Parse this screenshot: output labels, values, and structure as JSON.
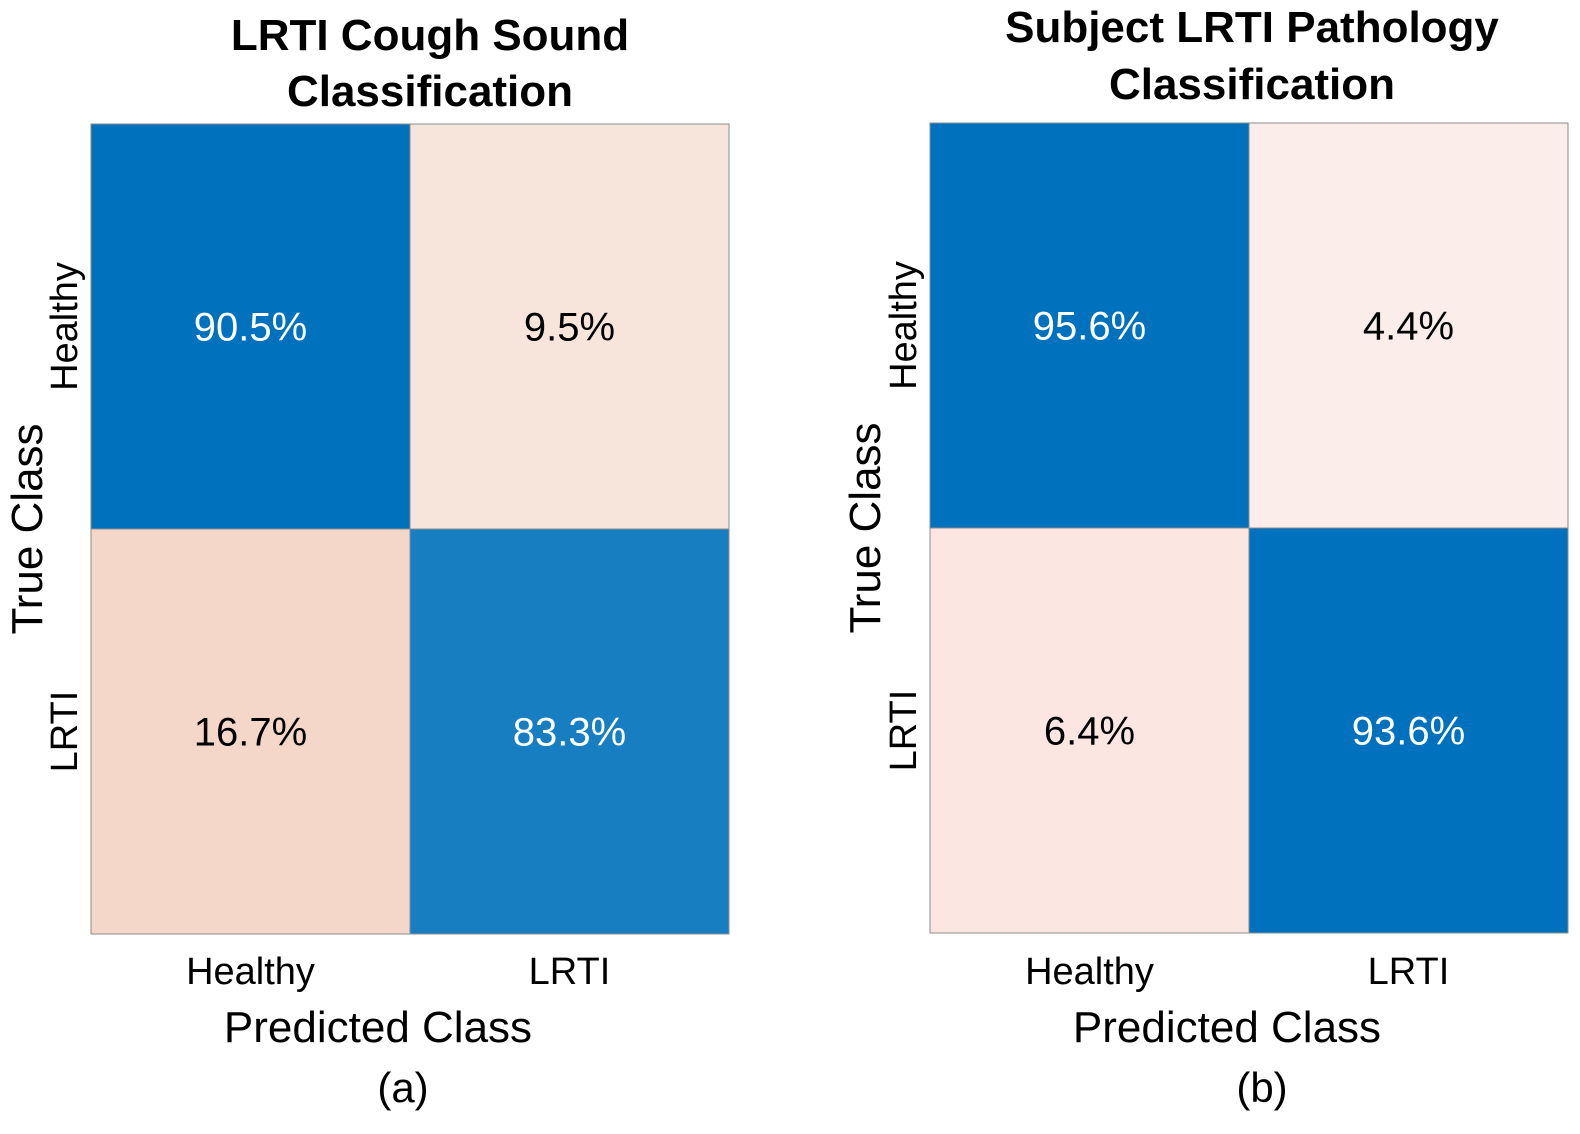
{
  "chart_data": [
    {
      "type": "heatmap",
      "title_lines": [
        "LRTI Cough Sound",
        "Classification"
      ],
      "xlabel": "Predicted Class",
      "ylabel": "True Class",
      "x_categories": [
        "Healthy",
        "LRTI"
      ],
      "y_categories": [
        "Healthy",
        "LRTI"
      ],
      "values": [
        [
          90.5,
          9.5
        ],
        [
          16.7,
          83.3
        ]
      ],
      "labels": [
        [
          "90.5%",
          "9.5%"
        ],
        [
          "16.7%",
          "83.3%"
        ]
      ],
      "cell_colors": [
        [
          "#0071bc",
          "#f7e5dc"
        ],
        [
          "#f4d7c9",
          "#177ec2"
        ]
      ],
      "text_colors": [
        [
          "#ffffff",
          "#000000"
        ],
        [
          "#000000",
          "#ffffff"
        ]
      ],
      "caption": "(a)"
    },
    {
      "type": "heatmap",
      "title_lines": [
        "Subject LRTI Pathology",
        "Classification"
      ],
      "xlabel": "Predicted Class",
      "ylabel": "True Class",
      "x_categories": [
        "Healthy",
        "LRTI"
      ],
      "y_categories": [
        "Healthy",
        "LRTI"
      ],
      "values": [
        [
          95.6,
          4.4
        ],
        [
          6.4,
          93.6
        ]
      ],
      "labels": [
        [
          "95.6%",
          "4.4%"
        ],
        [
          "6.4%",
          "93.6%"
        ]
      ],
      "cell_colors": [
        [
          "#0071bc",
          "#fbedea"
        ],
        [
          "#fbe6e1",
          "#0071bc"
        ]
      ],
      "text_colors": [
        [
          "#ffffff",
          "#000000"
        ],
        [
          "#000000",
          "#ffffff"
        ]
      ],
      "caption": "(b)"
    }
  ]
}
